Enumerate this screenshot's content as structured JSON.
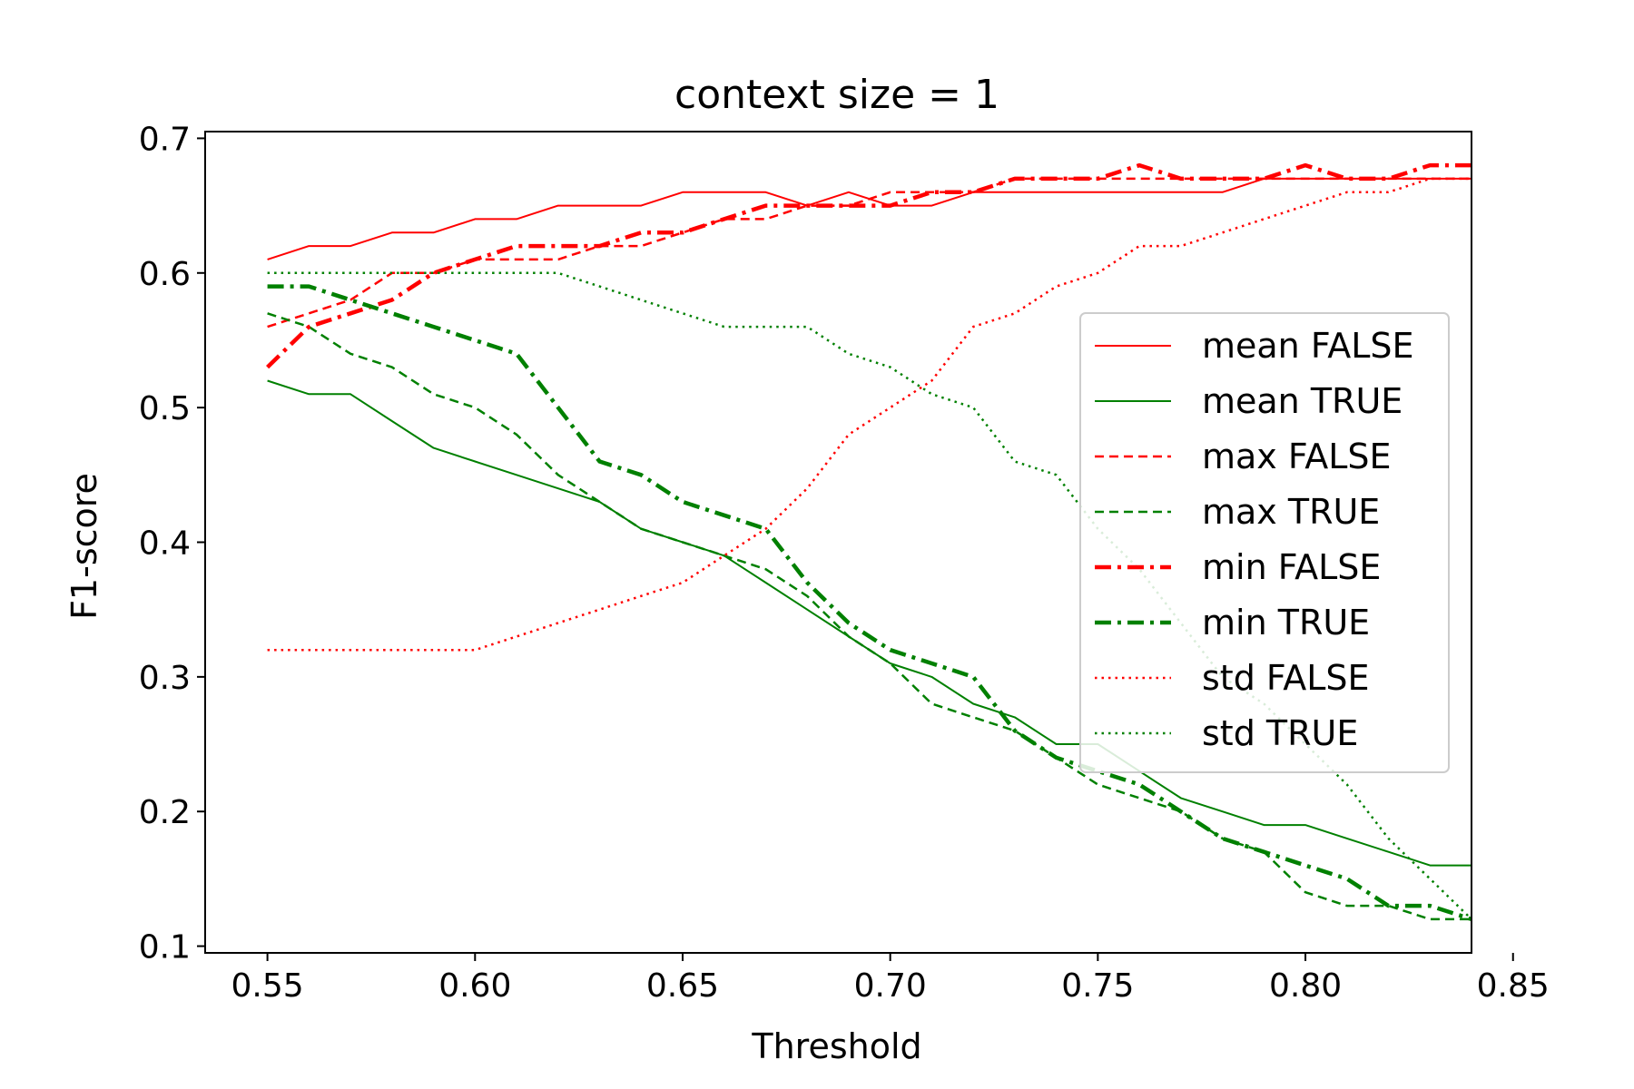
{
  "chart_data": {
    "type": "line",
    "title": "context size = 1",
    "xlabel": "Threshold",
    "ylabel": "F1-score",
    "xlim": [
      0.535,
      0.84
    ],
    "ylim": [
      0.095,
      0.705
    ],
    "xticks": [
      0.55,
      0.6,
      0.65,
      0.7,
      0.75,
      0.8,
      0.85
    ],
    "xtick_labels": [
      "0.55",
      "0.60",
      "0.65",
      "0.70",
      "0.75",
      "0.80",
      "0.85"
    ],
    "yticks": [
      0.1,
      0.2,
      0.3,
      0.4,
      0.5,
      0.6,
      0.7
    ],
    "ytick_labels": [
      "0.1",
      "0.2",
      "0.3",
      "0.4",
      "0.5",
      "0.6",
      "0.7"
    ],
    "grid": false,
    "legend_position": "center-right",
    "x": [
      0.55,
      0.56,
      0.57,
      0.58,
      0.59,
      0.6,
      0.61,
      0.62,
      0.63,
      0.64,
      0.65,
      0.66,
      0.67,
      0.68,
      0.69,
      0.7,
      0.71,
      0.72,
      0.73,
      0.74,
      0.75,
      0.76,
      0.77,
      0.78,
      0.79,
      0.8,
      0.81,
      0.82,
      0.83,
      0.84
    ],
    "series": [
      {
        "name": "mean FALSE",
        "color": "#ff0000",
        "style": "solid",
        "values": [
          0.61,
          0.62,
          0.62,
          0.63,
          0.63,
          0.64,
          0.64,
          0.65,
          0.65,
          0.65,
          0.66,
          0.66,
          0.66,
          0.65,
          0.66,
          0.65,
          0.65,
          0.66,
          0.66,
          0.66,
          0.66,
          0.66,
          0.66,
          0.66,
          0.67,
          0.67,
          0.67,
          0.67,
          0.67,
          0.67
        ]
      },
      {
        "name": "mean TRUE",
        "color": "#008000",
        "style": "solid",
        "values": [
          0.52,
          0.51,
          0.51,
          0.49,
          0.47,
          0.46,
          0.45,
          0.44,
          0.43,
          0.41,
          0.4,
          0.39,
          0.37,
          0.35,
          0.33,
          0.31,
          0.3,
          0.28,
          0.27,
          0.25,
          0.25,
          0.23,
          0.21,
          0.2,
          0.19,
          0.19,
          0.18,
          0.17,
          0.16,
          0.16
        ]
      },
      {
        "name": "max FALSE",
        "color": "#ff0000",
        "style": "dashed",
        "values": [
          0.56,
          0.57,
          0.58,
          0.6,
          0.6,
          0.61,
          0.61,
          0.61,
          0.62,
          0.62,
          0.63,
          0.64,
          0.64,
          0.65,
          0.65,
          0.66,
          0.66,
          0.66,
          0.67,
          0.67,
          0.67,
          0.67,
          0.67,
          0.67,
          0.67,
          0.67,
          0.67,
          0.67,
          0.67,
          0.67
        ]
      },
      {
        "name": "max TRUE",
        "color": "#008000",
        "style": "dashed",
        "values": [
          0.57,
          0.56,
          0.54,
          0.53,
          0.51,
          0.5,
          0.48,
          0.45,
          0.43,
          0.41,
          0.4,
          0.39,
          0.38,
          0.36,
          0.33,
          0.31,
          0.28,
          0.27,
          0.26,
          0.24,
          0.22,
          0.21,
          0.2,
          0.18,
          0.17,
          0.14,
          0.13,
          0.13,
          0.12,
          0.12
        ]
      },
      {
        "name": "min FALSE",
        "color": "#ff0000",
        "style": "dashdot",
        "values": [
          0.53,
          0.56,
          0.57,
          0.58,
          0.6,
          0.61,
          0.62,
          0.62,
          0.62,
          0.63,
          0.63,
          0.64,
          0.65,
          0.65,
          0.65,
          0.65,
          0.66,
          0.66,
          0.67,
          0.67,
          0.67,
          0.68,
          0.67,
          0.67,
          0.67,
          0.68,
          0.67,
          0.67,
          0.68,
          0.68
        ]
      },
      {
        "name": "min TRUE",
        "color": "#008000",
        "style": "dashdot",
        "values": [
          0.59,
          0.59,
          0.58,
          0.57,
          0.56,
          0.55,
          0.54,
          0.5,
          0.46,
          0.45,
          0.43,
          0.42,
          0.41,
          0.37,
          0.34,
          0.32,
          0.31,
          0.3,
          0.26,
          0.24,
          0.23,
          0.22,
          0.2,
          0.18,
          0.17,
          0.16,
          0.15,
          0.13,
          0.13,
          0.12
        ]
      },
      {
        "name": "std FALSE",
        "color": "#ff0000",
        "style": "dotted",
        "values": [
          0.32,
          0.32,
          0.32,
          0.32,
          0.32,
          0.32,
          0.33,
          0.34,
          0.35,
          0.36,
          0.37,
          0.39,
          0.41,
          0.44,
          0.48,
          0.5,
          0.52,
          0.56,
          0.57,
          0.59,
          0.6,
          0.62,
          0.62,
          0.63,
          0.64,
          0.65,
          0.66,
          0.66,
          0.67,
          0.67
        ]
      },
      {
        "name": "std TRUE",
        "color": "#008000",
        "style": "dotted",
        "values": [
          0.6,
          0.6,
          0.6,
          0.6,
          0.6,
          0.6,
          0.6,
          0.6,
          0.59,
          0.58,
          0.57,
          0.56,
          0.56,
          0.56,
          0.54,
          0.53,
          0.51,
          0.5,
          0.46,
          0.45,
          0.41,
          0.38,
          0.34,
          0.3,
          0.28,
          0.25,
          0.22,
          0.18,
          0.15,
          0.12
        ]
      }
    ]
  }
}
